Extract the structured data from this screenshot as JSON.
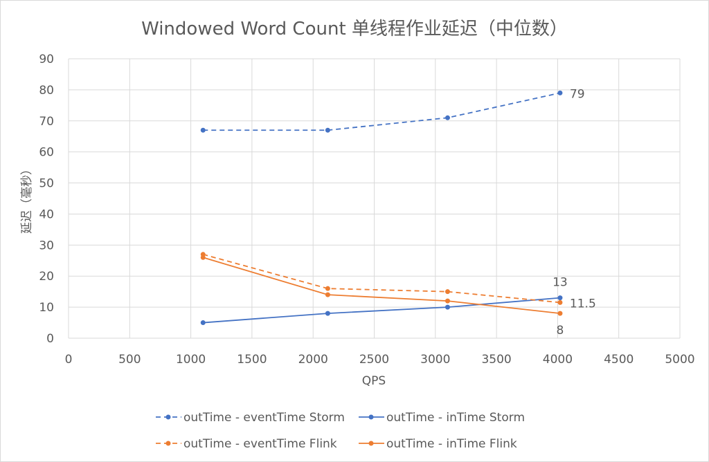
{
  "chart_data": {
    "type": "line",
    "title": "Windowed Word Count 单线程作业延迟（中位数）",
    "xlabel": "QPS",
    "ylabel": "延迟（毫秒）",
    "xlim": [
      0,
      5000
    ],
    "ylim": [
      0,
      90
    ],
    "xticks": [
      0,
      500,
      1000,
      1500,
      2000,
      2500,
      3000,
      3500,
      4000,
      4500,
      5000
    ],
    "yticks": [
      0,
      10,
      20,
      30,
      40,
      50,
      60,
      70,
      80,
      90
    ],
    "grid": true,
    "legend_placement": "bottom",
    "series": [
      {
        "name": "outTime - eventTime Storm",
        "color": "#4472C4",
        "dash": true,
        "x": [
          1100,
          2120,
          3100,
          4020
        ],
        "y": [
          67,
          67,
          71,
          79
        ],
        "labels": [
          null,
          null,
          null,
          "79"
        ],
        "label_pos": "right"
      },
      {
        "name": "outTime - inTime Storm",
        "color": "#4472C4",
        "dash": false,
        "x": [
          1100,
          2120,
          3100,
          4020
        ],
        "y": [
          5,
          8,
          10,
          13
        ],
        "labels": [
          null,
          null,
          null,
          "13"
        ],
        "label_pos": "above"
      },
      {
        "name": "outTime - eventTime Flink",
        "color": "#ED7D31",
        "dash": true,
        "x": [
          1100,
          2120,
          3100,
          4020
        ],
        "y": [
          27,
          16,
          15,
          11.5
        ],
        "labels": [
          null,
          null,
          null,
          "11.5"
        ],
        "label_pos": "right"
      },
      {
        "name": "outTime - inTime Flink",
        "color": "#ED7D31",
        "dash": false,
        "x": [
          1100,
          2120,
          3100,
          4020
        ],
        "y": [
          26,
          14,
          12,
          8
        ],
        "labels": [
          null,
          null,
          null,
          "8"
        ],
        "label_pos": "below"
      }
    ]
  }
}
